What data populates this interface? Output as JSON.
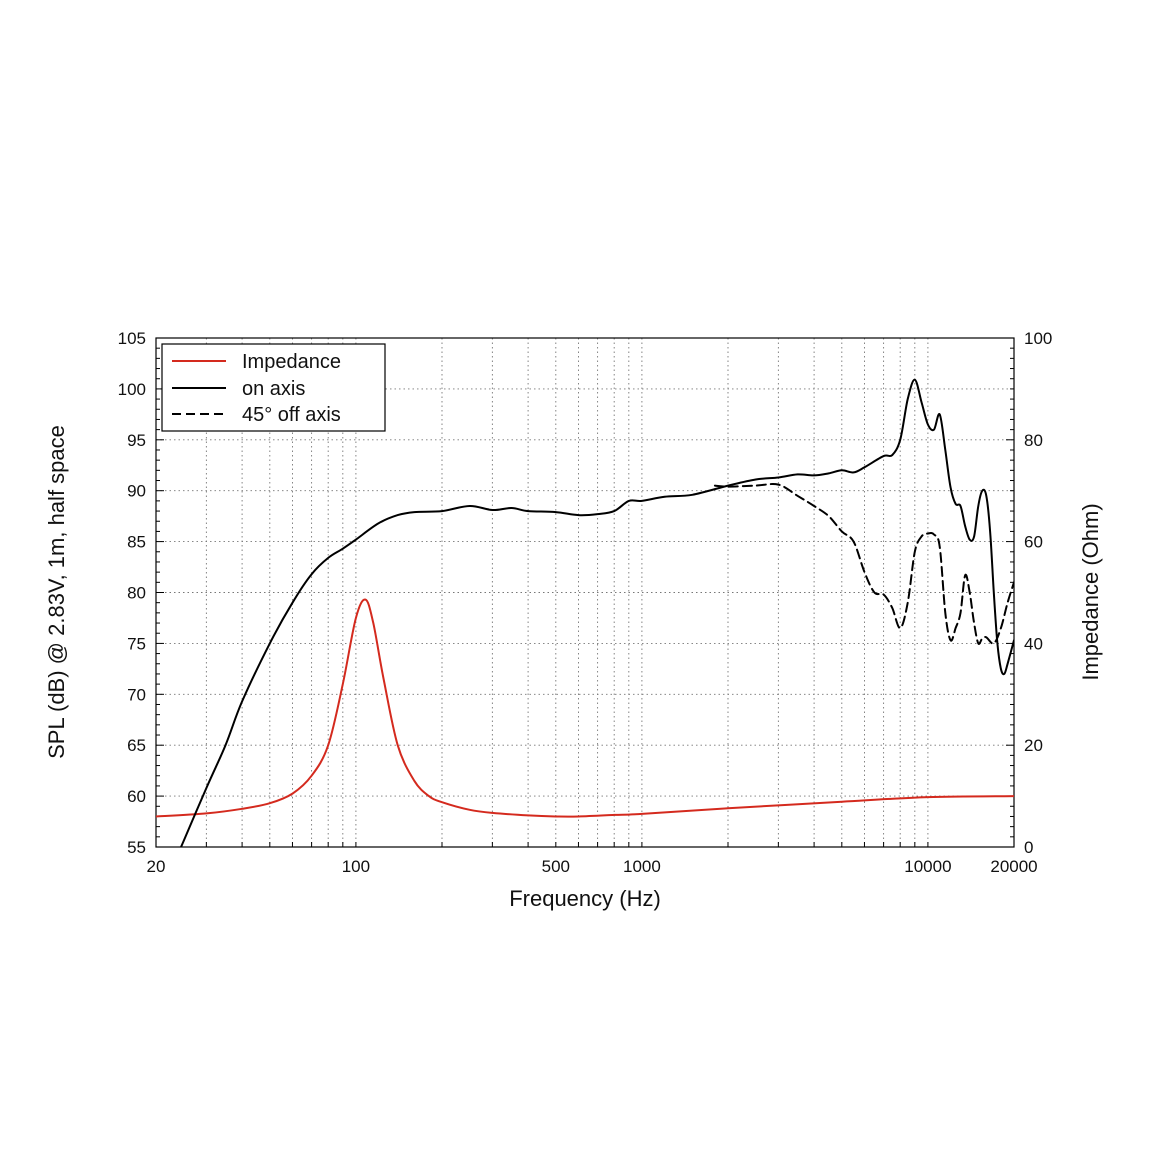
{
  "chart_data": {
    "type": "line",
    "xlabel": "Frequency (Hz)",
    "ylabel": "SPL (dB) @ 2.83V, 1m, half space",
    "y2label": "Impedance (Ohm)",
    "x_scale": "log",
    "xlim": [
      20,
      20000
    ],
    "ylim": [
      55,
      105
    ],
    "y2lim": [
      0,
      100
    ],
    "grid": "dotted",
    "legend_position": "top-left",
    "x_ticks": [
      {
        "value": 20,
        "label": "20"
      },
      {
        "value": 100,
        "label": "100"
      },
      {
        "value": 500,
        "label": "500"
      },
      {
        "value": 1000,
        "label": "1000"
      },
      {
        "value": 10000,
        "label": "10000"
      },
      {
        "value": 20000,
        "label": "20000"
      }
    ],
    "y_ticks": [
      {
        "value": 55,
        "label": "55"
      },
      {
        "value": 60,
        "label": "60"
      },
      {
        "value": 65,
        "label": "65"
      },
      {
        "value": 70,
        "label": "70"
      },
      {
        "value": 75,
        "label": "75"
      },
      {
        "value": 80,
        "label": "80"
      },
      {
        "value": 85,
        "label": "85"
      },
      {
        "value": 90,
        "label": "90"
      },
      {
        "value": 95,
        "label": "95"
      },
      {
        "value": 100,
        "label": "100"
      },
      {
        "value": 105,
        "label": "105"
      }
    ],
    "y2_ticks": [
      {
        "value": 0,
        "label": "0"
      },
      {
        "value": 20,
        "label": "20"
      },
      {
        "value": 40,
        "label": "40"
      },
      {
        "value": 60,
        "label": "60"
      },
      {
        "value": 80,
        "label": "80"
      },
      {
        "value": 100,
        "label": "100"
      }
    ],
    "series": [
      {
        "name": "Impedance",
        "axis": "right",
        "color": "#d42a1e",
        "dash": "solid",
        "points": [
          [
            20,
            6
          ],
          [
            30,
            6.6
          ],
          [
            40,
            7.5
          ],
          [
            50,
            8.6
          ],
          [
            60,
            10.5
          ],
          [
            70,
            14
          ],
          [
            80,
            20
          ],
          [
            90,
            32
          ],
          [
            100,
            45
          ],
          [
            108,
            48.6
          ],
          [
            115,
            44
          ],
          [
            125,
            33
          ],
          [
            140,
            20
          ],
          [
            160,
            13
          ],
          [
            180,
            10
          ],
          [
            200,
            8.8
          ],
          [
            250,
            7.3
          ],
          [
            300,
            6.7
          ],
          [
            400,
            6.2
          ],
          [
            500,
            6
          ],
          [
            600,
            6
          ],
          [
            800,
            6.3
          ],
          [
            1000,
            6.5
          ],
          [
            2000,
            7.6
          ],
          [
            5000,
            8.9
          ],
          [
            10000,
            9.8
          ],
          [
            20000,
            10
          ]
        ]
      },
      {
        "name": "on axis",
        "axis": "left",
        "color": "#000000",
        "dash": "solid",
        "points": [
          [
            24,
            54.5
          ],
          [
            25,
            55.6
          ],
          [
            30,
            60.8
          ],
          [
            35,
            65
          ],
          [
            40,
            69.3
          ],
          [
            50,
            75
          ],
          [
            60,
            79
          ],
          [
            70,
            81.8
          ],
          [
            80,
            83.4
          ],
          [
            90,
            84.3
          ],
          [
            100,
            85.2
          ],
          [
            120,
            86.8
          ],
          [
            140,
            87.6
          ],
          [
            160,
            87.9
          ],
          [
            200,
            88
          ],
          [
            250,
            88.5
          ],
          [
            300,
            88.1
          ],
          [
            350,
            88.3
          ],
          [
            400,
            88
          ],
          [
            500,
            87.9
          ],
          [
            600,
            87.6
          ],
          [
            700,
            87.7
          ],
          [
            800,
            88
          ],
          [
            900,
            89
          ],
          [
            1000,
            89
          ],
          [
            1200,
            89.4
          ],
          [
            1500,
            89.6
          ],
          [
            2000,
            90.5
          ],
          [
            2500,
            91.1
          ],
          [
            3000,
            91.3
          ],
          [
            3500,
            91.6
          ],
          [
            4000,
            91.5
          ],
          [
            4500,
            91.7
          ],
          [
            5000,
            92
          ],
          [
            5500,
            91.8
          ],
          [
            6000,
            92.3
          ],
          [
            7000,
            93.4
          ],
          [
            7500,
            93.5
          ],
          [
            8000,
            95
          ],
          [
            8500,
            99
          ],
          [
            9000,
            100.9
          ],
          [
            9500,
            98.7
          ],
          [
            10000,
            96.5
          ],
          [
            10500,
            96
          ],
          [
            11000,
            97.5
          ],
          [
            11500,
            94
          ],
          [
            12000,
            90.3
          ],
          [
            12500,
            88.7
          ],
          [
            13000,
            88.5
          ],
          [
            13500,
            86.5
          ],
          [
            14000,
            85.2
          ],
          [
            14500,
            85.5
          ],
          [
            15000,
            88.5
          ],
          [
            15500,
            90
          ],
          [
            16000,
            89.5
          ],
          [
            16500,
            86
          ],
          [
            17000,
            80
          ],
          [
            17500,
            75
          ],
          [
            18000,
            72.5
          ],
          [
            18500,
            72
          ],
          [
            19000,
            73
          ],
          [
            20000,
            75.3
          ]
        ]
      },
      {
        "name": "45° off axis",
        "axis": "left",
        "color": "#000000",
        "dash": "dashed",
        "points": [
          [
            1800,
            90.5
          ],
          [
            2000,
            90.4
          ],
          [
            2500,
            90.5
          ],
          [
            3000,
            90.6
          ],
          [
            3500,
            89.5
          ],
          [
            4000,
            88.5
          ],
          [
            4500,
            87.5
          ],
          [
            5000,
            86
          ],
          [
            5500,
            85
          ],
          [
            6000,
            82
          ],
          [
            6500,
            80
          ],
          [
            7000,
            79.8
          ],
          [
            7500,
            78.5
          ],
          [
            8000,
            76.5
          ],
          [
            8500,
            79
          ],
          [
            9000,
            84
          ],
          [
            9500,
            85.5
          ],
          [
            10000,
            85.8
          ],
          [
            10500,
            85.7
          ],
          [
            11000,
            84.5
          ],
          [
            11500,
            78
          ],
          [
            12000,
            75.3
          ],
          [
            12500,
            76.5
          ],
          [
            13000,
            78
          ],
          [
            13500,
            81.7
          ],
          [
            14000,
            80
          ],
          [
            14500,
            77
          ],
          [
            15000,
            75
          ],
          [
            15500,
            75.5
          ],
          [
            16000,
            75.6
          ],
          [
            17000,
            75
          ],
          [
            18000,
            76.5
          ],
          [
            19000,
            79
          ],
          [
            20000,
            81
          ]
        ]
      }
    ]
  }
}
